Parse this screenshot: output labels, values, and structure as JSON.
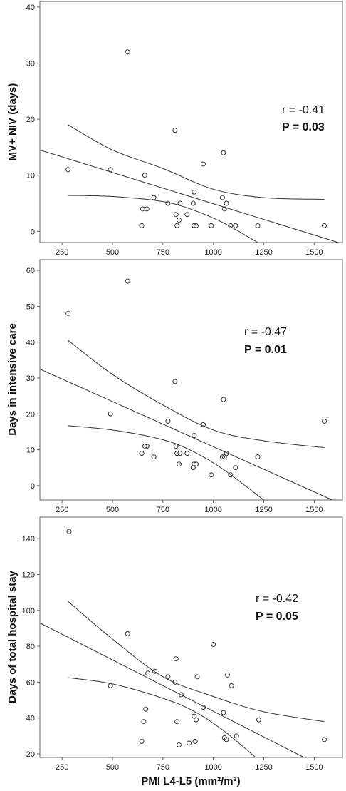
{
  "chart_data": [
    {
      "type": "scatter",
      "ylabel": "MV+ NIV (days)",
      "r_text": "r = -0.41",
      "p_text": "P = 0.03",
      "xlim": [
        140,
        1640
      ],
      "ylim": [
        -2,
        41
      ],
      "xticks": [
        250,
        500,
        750,
        1000,
        1250,
        1500
      ],
      "yticks": [
        0,
        10,
        20,
        30,
        40
      ],
      "points": [
        {
          "x": 280,
          "y": 11
        },
        {
          "x": 490,
          "y": 11
        },
        {
          "x": 575,
          "y": 32
        },
        {
          "x": 645,
          "y": 1
        },
        {
          "x": 650,
          "y": 4
        },
        {
          "x": 660,
          "y": 10
        },
        {
          "x": 670,
          "y": 4
        },
        {
          "x": 705,
          "y": 6
        },
        {
          "x": 775,
          "y": 5
        },
        {
          "x": 810,
          "y": 18
        },
        {
          "x": 815,
          "y": 3
        },
        {
          "x": 820,
          "y": 1
        },
        {
          "x": 830,
          "y": 2
        },
        {
          "x": 835,
          "y": 5
        },
        {
          "x": 870,
          "y": 3
        },
        {
          "x": 900,
          "y": 5
        },
        {
          "x": 905,
          "y": 7
        },
        {
          "x": 905,
          "y": 1
        },
        {
          "x": 915,
          "y": 1
        },
        {
          "x": 950,
          "y": 12
        },
        {
          "x": 990,
          "y": 1
        },
        {
          "x": 1045,
          "y": 6
        },
        {
          "x": 1050,
          "y": 14
        },
        {
          "x": 1055,
          "y": 4
        },
        {
          "x": 1065,
          "y": 5
        },
        {
          "x": 1085,
          "y": 1
        },
        {
          "x": 1110,
          "y": 1
        },
        {
          "x": 1220,
          "y": 1
        },
        {
          "x": 1550,
          "y": 1
        }
      ],
      "fit_line": [
        [
          140,
          14.5
        ],
        [
          1620,
          -2
        ]
      ],
      "ci_upper": [
        [
          280,
          19
        ],
        [
          500,
          14.5
        ],
        [
          750,
          11.2
        ],
        [
          1000,
          7.5
        ],
        [
          1250,
          6
        ],
        [
          1550,
          5.7
        ]
      ],
      "ci_lower": [
        [
          280,
          6.4
        ],
        [
          500,
          6.2
        ],
        [
          750,
          5.3
        ],
        [
          900,
          3.8
        ],
        [
          1050,
          1.5
        ],
        [
          1220,
          -2
        ]
      ]
    },
    {
      "type": "scatter",
      "ylabel": "Days in intensive care",
      "r_text": "r = -0.47",
      "p_text": "P = 0.01",
      "xlim": [
        140,
        1640
      ],
      "ylim": [
        -4,
        63
      ],
      "xticks": [
        250,
        500,
        750,
        1000,
        1250,
        1500
      ],
      "yticks": [
        0,
        10,
        20,
        30,
        40,
        50,
        60
      ],
      "points": [
        {
          "x": 280,
          "y": 48
        },
        {
          "x": 490,
          "y": 20
        },
        {
          "x": 575,
          "y": 57
        },
        {
          "x": 645,
          "y": 9
        },
        {
          "x": 660,
          "y": 11
        },
        {
          "x": 670,
          "y": 11
        },
        {
          "x": 705,
          "y": 8
        },
        {
          "x": 775,
          "y": 18
        },
        {
          "x": 810,
          "y": 29
        },
        {
          "x": 815,
          "y": 11
        },
        {
          "x": 820,
          "y": 9
        },
        {
          "x": 830,
          "y": 6
        },
        {
          "x": 835,
          "y": 9
        },
        {
          "x": 870,
          "y": 9
        },
        {
          "x": 900,
          "y": 5
        },
        {
          "x": 905,
          "y": 14
        },
        {
          "x": 905,
          "y": 6
        },
        {
          "x": 915,
          "y": 6
        },
        {
          "x": 950,
          "y": 17
        },
        {
          "x": 990,
          "y": 3
        },
        {
          "x": 1045,
          "y": 8
        },
        {
          "x": 1050,
          "y": 24
        },
        {
          "x": 1055,
          "y": 8
        },
        {
          "x": 1065,
          "y": 9
        },
        {
          "x": 1085,
          "y": 3
        },
        {
          "x": 1110,
          "y": 5
        },
        {
          "x": 1220,
          "y": 8
        },
        {
          "x": 1550,
          "y": 18
        }
      ],
      "fit_line": [
        [
          140,
          32.5
        ],
        [
          1590,
          -4
        ]
      ],
      "ci_upper": [
        [
          280,
          40.5
        ],
        [
          500,
          31
        ],
        [
          750,
          22.5
        ],
        [
          1000,
          15.5
        ],
        [
          1250,
          12.5
        ],
        [
          1550,
          10.6
        ]
      ],
      "ci_lower": [
        [
          280,
          16.7
        ],
        [
          500,
          15.5
        ],
        [
          750,
          12.8
        ],
        [
          900,
          9.5
        ],
        [
          1050,
          4.5
        ],
        [
          1250,
          -4
        ]
      ]
    },
    {
      "type": "scatter",
      "ylabel": "Days of total hospital stay",
      "xlabel": "PMI L4-L5 (mm²/m²)",
      "r_text": "r = -0.42",
      "p_text": "P = 0.05",
      "xlim": [
        140,
        1640
      ],
      "ylim": [
        18,
        152
      ],
      "xticks": [
        250,
        500,
        750,
        1000,
        1250,
        1500
      ],
      "yticks": [
        20,
        40,
        60,
        80,
        100,
        120,
        140
      ],
      "points": [
        {
          "x": 285,
          "y": 144
        },
        {
          "x": 490,
          "y": 58
        },
        {
          "x": 575,
          "y": 87
        },
        {
          "x": 645,
          "y": 27
        },
        {
          "x": 655,
          "y": 38
        },
        {
          "x": 665,
          "y": 45
        },
        {
          "x": 675,
          "y": 65
        },
        {
          "x": 710,
          "y": 66
        },
        {
          "x": 775,
          "y": 63
        },
        {
          "x": 810,
          "y": 60
        },
        {
          "x": 815,
          "y": 73
        },
        {
          "x": 820,
          "y": 38
        },
        {
          "x": 830,
          "y": 25
        },
        {
          "x": 840,
          "y": 53
        },
        {
          "x": 880,
          "y": 26
        },
        {
          "x": 905,
          "y": 41
        },
        {
          "x": 910,
          "y": 27
        },
        {
          "x": 915,
          "y": 39
        },
        {
          "x": 920,
          "y": 63
        },
        {
          "x": 950,
          "y": 46
        },
        {
          "x": 1000,
          "y": 81
        },
        {
          "x": 1050,
          "y": 43
        },
        {
          "x": 1055,
          "y": 29
        },
        {
          "x": 1065,
          "y": 28
        },
        {
          "x": 1070,
          "y": 64
        },
        {
          "x": 1090,
          "y": 58
        },
        {
          "x": 1115,
          "y": 30
        },
        {
          "x": 1225,
          "y": 39
        },
        {
          "x": 1550,
          "y": 28
        }
      ],
      "fit_line": [
        [
          140,
          93
        ],
        [
          1450,
          18
        ]
      ],
      "ci_upper": [
        [
          280,
          105
        ],
        [
          500,
          84
        ],
        [
          750,
          63
        ],
        [
          1000,
          52
        ],
        [
          1250,
          43.5
        ],
        [
          1550,
          38
        ]
      ],
      "ci_lower": [
        [
          280,
          62.5
        ],
        [
          500,
          59
        ],
        [
          750,
          51
        ],
        [
          900,
          44
        ],
        [
          1050,
          33
        ],
        [
          1210,
          18
        ]
      ]
    }
  ]
}
